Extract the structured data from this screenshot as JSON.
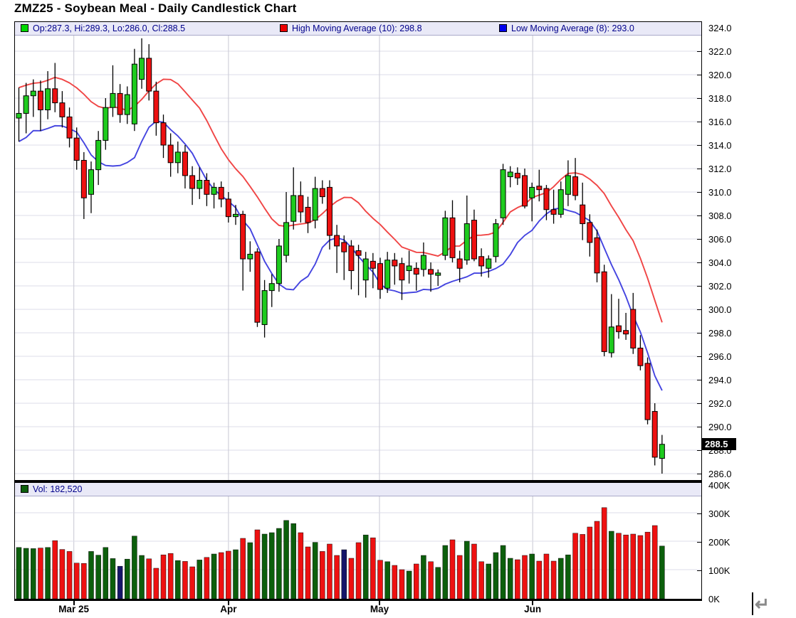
{
  "title": "ZMZ25 - Soybean Meal - Daily Candlestick Chart",
  "legend": {
    "ohlc": {
      "label": "Op:287.3, Hi:289.3, Lo:286.0, Cl:288.5",
      "swatch_color": "#00D800"
    },
    "high_ma": {
      "label": "High Moving Average (10): 298.8",
      "swatch_color": "#EE0000"
    },
    "low_ma": {
      "label": "Low Moving Average (8): 293.0",
      "swatch_color": "#0000EE"
    }
  },
  "volume_legend": {
    "label": "Vol: 182,520",
    "swatch_color": "#0C5F0C"
  },
  "price_axis": {
    "min": 286.0,
    "max": 324.0,
    "step": 2.0,
    "tick_labels": [
      "324.0",
      "322.0",
      "320.0",
      "318.0",
      "316.0",
      "314.0",
      "312.0",
      "310.0",
      "308.0",
      "306.0",
      "304.0",
      "302.0",
      "300.0",
      "298.0",
      "296.0",
      "294.0",
      "292.0",
      "290.0",
      "288.0",
      "286.0"
    ],
    "last_price_label": "288.5"
  },
  "volume_axis": {
    "tick_labels": [
      "400K",
      "300K",
      "200K",
      "100K",
      "0K"
    ],
    "tick_values_k": [
      400,
      300,
      200,
      100,
      0
    ],
    "max_k": 400
  },
  "x_axis": {
    "labels": [
      {
        "label": "Mar 25",
        "i": 7.6
      },
      {
        "label": "Apr",
        "i": 29.0
      },
      {
        "label": "May",
        "i": 49.9
      },
      {
        "label": "Jun",
        "i": 71.1
      }
    ]
  },
  "cursor": {
    "return_glyph": "↵"
  },
  "colors": {
    "candle_up": "#1ECB1E",
    "candle_down": "#EE1111",
    "wick": "#000000",
    "ma_high": "#F04545",
    "ma_low": "#4444E0",
    "vol_up": "#0C5F0C",
    "vol_down": "#EE1111",
    "vol_navy": "#151569",
    "grid_h": "#DCDCE8",
    "grid_v": "#D0D0DA",
    "legend_bg": "#E9E9F7",
    "legend_text": "#00008B",
    "badge_bg": "#000000",
    "badge_text": "#FFFFFF"
  },
  "chart_data": {
    "type": "candlestick",
    "title": "ZMZ25 - Soybean Meal - Daily Candlestick Chart",
    "panels": [
      "price",
      "volume"
    ],
    "price_range": [
      286.0,
      324.0
    ],
    "volume_range_k": [
      0,
      400
    ],
    "overlays": [
      {
        "name": "High Moving Average",
        "window": 10,
        "source": "high",
        "color": "#F04545",
        "last_value": 298.8
      },
      {
        "name": "Low Moving Average",
        "window": 8,
        "source": "low",
        "color": "#4444E0",
        "last_value": 293.0
      }
    ],
    "last_candle": {
      "open": 287.3,
      "high": 289.3,
      "low": 286.0,
      "close": 288.5,
      "volume": 182520
    },
    "navy_volume_indices": [
      14,
      45
    ],
    "candles_format": [
      "open",
      "high",
      "low",
      "close",
      "volume_k"
    ],
    "candles": [
      [
        316.3,
        318.9,
        314.3,
        316.7,
        178
      ],
      [
        316.7,
        319.3,
        315.0,
        318.2,
        175
      ],
      [
        318.2,
        319.6,
        316.4,
        318.6,
        174
      ],
      [
        318.6,
        319.5,
        315.2,
        317.0,
        176
      ],
      [
        317.0,
        320.3,
        316.2,
        318.8,
        178
      ],
      [
        318.8,
        321.0,
        316.8,
        317.6,
        202
      ],
      [
        317.6,
        318.6,
        315.5,
        316.4,
        171
      ],
      [
        316.4,
        317.2,
        313.8,
        314.6,
        164
      ],
      [
        314.6,
        315.5,
        311.9,
        312.7,
        123
      ],
      [
        312.7,
        313.4,
        307.7,
        309.5,
        122
      ],
      [
        309.8,
        312.6,
        308.2,
        311.9,
        164
      ],
      [
        311.9,
        315.2,
        310.6,
        314.4,
        151
      ],
      [
        314.4,
        318.0,
        313.6,
        317.2,
        178
      ],
      [
        317.2,
        320.8,
        316.4,
        318.4,
        139
      ],
      [
        318.4,
        319.2,
        315.9,
        316.6,
        112
      ],
      [
        316.6,
        319.0,
        315.8,
        318.3,
        137
      ],
      [
        315.8,
        322.2,
        315.2,
        320.9,
        218
      ],
      [
        319.6,
        323.1,
        318.8,
        321.4,
        150
      ],
      [
        321.4,
        322.6,
        317.8,
        318.6,
        138
      ],
      [
        318.6,
        319.4,
        314.8,
        315.9,
        105
      ],
      [
        315.9,
        316.6,
        312.9,
        314.0,
        152
      ],
      [
        314.0,
        315.0,
        311.3,
        312.5,
        157
      ],
      [
        312.5,
        314.3,
        311.6,
        313.4,
        132
      ],
      [
        313.4,
        314.0,
        310.3,
        311.4,
        129
      ],
      [
        311.4,
        312.2,
        308.9,
        310.3,
        110
      ],
      [
        310.3,
        312.1,
        309.4,
        311.0,
        134
      ],
      [
        311.0,
        311.6,
        308.8,
        309.8,
        143
      ],
      [
        309.8,
        310.8,
        308.6,
        310.4,
        155
      ],
      [
        310.4,
        310.9,
        308.7,
        309.4,
        160
      ],
      [
        309.4,
        310.0,
        307.4,
        307.9,
        165
      ],
      [
        307.9,
        308.9,
        307.2,
        308.1,
        170
      ],
      [
        308.1,
        308.4,
        301.6,
        304.3,
        210
      ],
      [
        304.3,
        305.8,
        303.2,
        304.7,
        195
      ],
      [
        304.9,
        305.2,
        298.5,
        298.9,
        240
      ],
      [
        298.7,
        302.5,
        297.6,
        301.6,
        225
      ],
      [
        301.6,
        303.0,
        300.2,
        302.2,
        230
      ],
      [
        302.2,
        306.0,
        301.5,
        305.4,
        245
      ],
      [
        304.6,
        310.0,
        304.0,
        307.4,
        273
      ],
      [
        307.5,
        312.1,
        306.8,
        309.7,
        262
      ],
      [
        309.7,
        310.9,
        307.4,
        308.3,
        230
      ],
      [
        308.7,
        309.6,
        306.5,
        307.4,
        180
      ],
      [
        307.6,
        311.3,
        306.9,
        310.3,
        196
      ],
      [
        310.3,
        311.0,
        309.0,
        309.6,
        164
      ],
      [
        310.4,
        311.0,
        305.1,
        306.3,
        190
      ],
      [
        306.3,
        307.2,
        303.1,
        305.4,
        150
      ],
      [
        305.7,
        306.3,
        302.5,
        304.9,
        170
      ],
      [
        305.4,
        305.9,
        301.7,
        303.3,
        140
      ],
      [
        305.0,
        305.5,
        301.2,
        304.6,
        195
      ],
      [
        302.5,
        304.9,
        301.0,
        304.3,
        222
      ],
      [
        304.1,
        304.8,
        301.8,
        303.5,
        212
      ],
      [
        303.9,
        304.4,
        300.9,
        301.7,
        133
      ],
      [
        301.8,
        304.9,
        301.4,
        304.2,
        128
      ],
      [
        304.2,
        304.8,
        302.1,
        303.7,
        115
      ],
      [
        303.9,
        304.4,
        300.8,
        302.5,
        100
      ],
      [
        303.3,
        305.0,
        302.2,
        303.7,
        95
      ],
      [
        303.5,
        304.0,
        301.6,
        303.0,
        120
      ],
      [
        303.4,
        305.7,
        302.8,
        304.6,
        150
      ],
      [
        303.4,
        304.0,
        301.5,
        303.0,
        128
      ],
      [
        302.9,
        303.4,
        302.0,
        303.1,
        108
      ],
      [
        304.6,
        308.4,
        304.2,
        307.8,
        185
      ],
      [
        307.8,
        309.3,
        304.0,
        304.4,
        205
      ],
      [
        304.3,
        305.0,
        302.3,
        303.5,
        150
      ],
      [
        304.2,
        309.7,
        303.8,
        307.3,
        200
      ],
      [
        307.6,
        308.5,
        304.1,
        304.3,
        190
      ],
      [
        304.5,
        305.2,
        302.8,
        303.7,
        128
      ],
      [
        303.5,
        304.6,
        302.7,
        304.3,
        120
      ],
      [
        304.5,
        307.7,
        304.0,
        307.3,
        160
      ],
      [
        307.8,
        312.4,
        307.2,
        311.9,
        185
      ],
      [
        311.3,
        312.2,
        310.4,
        311.7,
        140
      ],
      [
        311.6,
        312.1,
        310.6,
        311.2,
        135
      ],
      [
        311.4,
        312.0,
        308.6,
        308.8,
        150
      ],
      [
        309.5,
        310.8,
        307.5,
        310.4,
        155
      ],
      [
        310.5,
        311.9,
        309.2,
        310.2,
        130
      ],
      [
        310.3,
        310.6,
        307.6,
        308.5,
        155
      ],
      [
        308.5,
        310.2,
        307.3,
        308.1,
        130
      ],
      [
        308.1,
        310.9,
        307.8,
        310.2,
        140
      ],
      [
        309.8,
        312.7,
        308.8,
        311.4,
        152
      ],
      [
        311.3,
        312.9,
        309.3,
        309.7,
        228
      ],
      [
        308.9,
        310.8,
        305.9,
        307.3,
        224
      ],
      [
        307.4,
        308.1,
        304.5,
        305.7,
        250
      ],
      [
        306.1,
        306.8,
        302.3,
        303.1,
        270
      ],
      [
        303.2,
        303.8,
        296.0,
        296.4,
        318
      ],
      [
        296.3,
        301.3,
        295.9,
        298.5,
        235
      ],
      [
        298.6,
        300.9,
        297.5,
        298.1,
        228
      ],
      [
        298.2,
        299.7,
        297.4,
        297.9,
        222
      ],
      [
        300.0,
        301.4,
        296.2,
        296.7,
        225
      ],
      [
        296.7,
        297.8,
        294.8,
        295.2,
        220
      ],
      [
        295.4,
        295.9,
        290.2,
        290.6,
        232
      ],
      [
        291.3,
        292.0,
        286.7,
        287.4,
        255
      ],
      [
        287.3,
        289.3,
        286.0,
        288.5,
        183
      ]
    ]
  }
}
